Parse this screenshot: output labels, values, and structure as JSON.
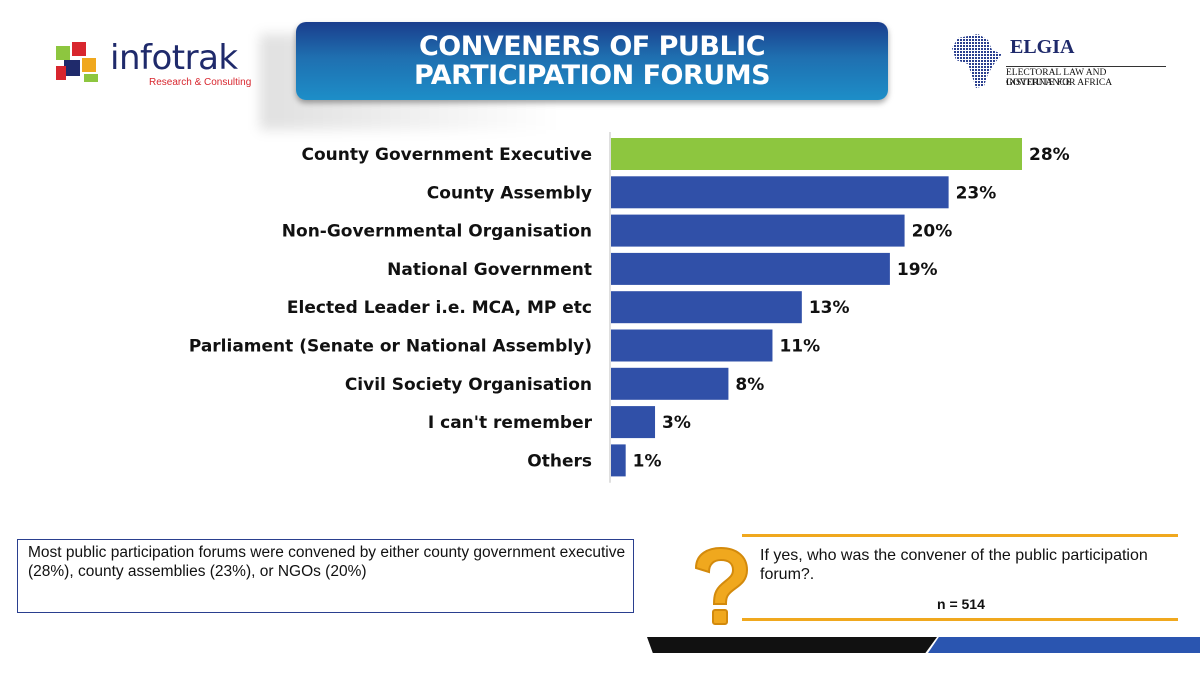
{
  "header": {
    "title_line1": "CONVENERS OF PUBLIC",
    "title_line2": "PARTICIPATION FORUMS",
    "left_logo_text": "infotrak",
    "left_logo_sub": "Research & Consulting",
    "right_logo_text": "ELGIA",
    "right_logo_line1": "ELECTORAL LAW AND GOVERNANCE",
    "right_logo_line2": "INSTITUTE FOR AFRICA"
  },
  "chart_data": {
    "type": "bar",
    "orientation": "horizontal",
    "title": "",
    "xlabel": "",
    "ylabel": "",
    "xlim": [
      0,
      30
    ],
    "grid": false,
    "categories": [
      "County Government Executive",
      "County Assembly",
      "Non-Governmental Organisation",
      "National Government",
      "Elected Leader i.e. MCA, MP etc",
      "Parliament (Senate or National Assembly)",
      "Civil Society Organisation",
      "I can't remember",
      "Others"
    ],
    "values": [
      28,
      23,
      20,
      19,
      13,
      11,
      8,
      3,
      1
    ],
    "value_labels": [
      "28%",
      "23%",
      "20%",
      "19%",
      "13%",
      "11%",
      "8%",
      "3%",
      "1%"
    ],
    "colors": [
      "#8dc63f",
      "#3050a8",
      "#3050a8",
      "#3050a8",
      "#3050a8",
      "#3050a8",
      "#3050a8",
      "#3050a8",
      "#3050a8"
    ]
  },
  "summary": {
    "text": "Most public participation forums were convened by either county government executive (28%), county assemblies (23%), or NGOs (20%)"
  },
  "question": {
    "text": "If yes, who was the convener of the public participation forum?.",
    "sample": "n = 514",
    "icon": "question-mark-icon"
  },
  "colors": {
    "accent": "#8dc63f",
    "bar": "#3050a8",
    "title_bg": "#1f6fb0",
    "question": "#f0a81e"
  }
}
